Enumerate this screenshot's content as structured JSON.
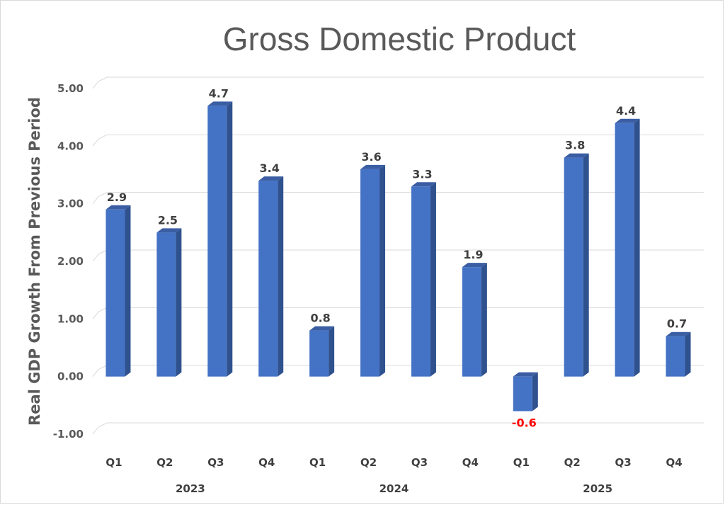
{
  "chart_data": {
    "type": "bar",
    "title": "Gross Domestic Product",
    "ylabel": "Real GDP Growth From Previous Period",
    "xlabel": "",
    "ylim": [
      -1,
      5
    ],
    "yticks": [
      "-1.00",
      "0.00",
      "1.00",
      "2.00",
      "3.00",
      "4.00",
      "5.00"
    ],
    "grid": true,
    "legend": "none",
    "bar_style": "3d",
    "colors": {
      "bar_front": "#4472c4",
      "bar_side": "#2f528f",
      "bar_top": "#3a5da3",
      "label_default": "#404040",
      "label_negative": "#ff0000",
      "grid": "#d9d9d9",
      "text": "#595959"
    },
    "groups": [
      {
        "label": "2023",
        "categories": [
          "Q1",
          "Q2",
          "Q3",
          "Q4"
        ]
      },
      {
        "label": "2024",
        "categories": [
          "Q1",
          "Q2",
          "Q3",
          "Q4"
        ]
      },
      {
        "label": "2025",
        "categories": [
          "Q1",
          "Q2",
          "Q3",
          "Q4"
        ]
      }
    ],
    "categories": [
      "Q1",
      "Q2",
      "Q3",
      "Q4",
      "Q1",
      "Q2",
      "Q3",
      "Q4",
      "Q1",
      "Q2",
      "Q3",
      "Q4"
    ],
    "values": [
      2.9,
      2.5,
      4.7,
      3.4,
      0.8,
      3.6,
      3.3,
      1.9,
      -0.6,
      3.8,
      4.4,
      0.7
    ],
    "data_labels": [
      "2.9",
      "2.5",
      "4.7",
      "3.4",
      "0.8",
      "3.6",
      "3.3",
      "1.9",
      "-0.6",
      "3.8",
      "4.4",
      "0.7"
    ]
  }
}
